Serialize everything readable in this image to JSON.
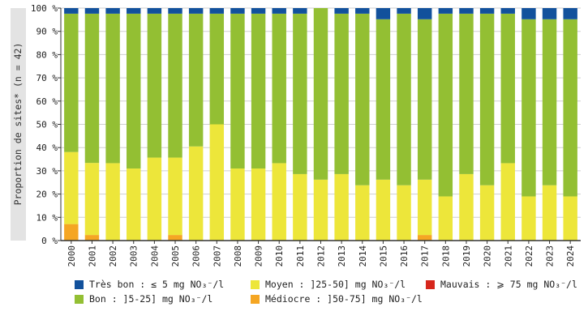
{
  "chart_data": {
    "type": "bar",
    "stacked": true,
    "ylabel": "Proportion de sites* (n = 42)",
    "ylim": [
      0,
      100
    ],
    "yticks": [
      "0 %",
      "10 %",
      "20 %",
      "30 %",
      "40 %",
      "50 %",
      "60 %",
      "70 %",
      "80 %",
      "90 %",
      "100 %"
    ],
    "grid": true,
    "legend_position": "bottom",
    "categories": [
      "2000",
      "2001",
      "2002",
      "2003",
      "2004",
      "2005",
      "2006",
      "2007",
      "2008",
      "2009",
      "2010",
      "2011",
      "2012",
      "2013",
      "2014",
      "2015",
      "2016",
      "2017",
      "2018",
      "2019",
      "2020",
      "2021",
      "2022",
      "2023",
      "2024"
    ],
    "series": [
      {
        "name": "Médiocre : ]50-75] mg NO₃⁻/l",
        "color": "#f5a623",
        "values": [
          7.1,
          2.4,
          0,
          0,
          0,
          2.4,
          0,
          0,
          0,
          0,
          0,
          0,
          0,
          0,
          0,
          0,
          0,
          2.4,
          0,
          0,
          0,
          0,
          0,
          0,
          0
        ]
      },
      {
        "name": "Moyen : ]25-50] mg NO₃⁻/l",
        "color": "#ede63a",
        "values": [
          31.0,
          31.0,
          33.3,
          31.0,
          35.7,
          33.3,
          40.5,
          50.0,
          31.0,
          31.0,
          33.3,
          28.6,
          26.2,
          28.6,
          23.8,
          26.2,
          23.8,
          23.8,
          19.0,
          28.6,
          23.8,
          33.3,
          19.0,
          23.8,
          19.0
        ]
      },
      {
        "name": "Bon : ]5-25] mg NO₃⁻/l",
        "color": "#93bf33",
        "values": [
          59.5,
          64.2,
          64.3,
          66.6,
          61.9,
          61.9,
          57.1,
          47.6,
          66.6,
          66.6,
          64.3,
          69.0,
          73.8,
          69.0,
          73.8,
          69.0,
          73.8,
          69.0,
          78.6,
          69.0,
          73.8,
          64.3,
          76.2,
          71.4,
          76.2
        ]
      },
      {
        "name": "Très bon : ≤ 5 mg NO₃⁻/l",
        "color": "#12519c",
        "values": [
          2.4,
          2.4,
          2.4,
          2.4,
          2.4,
          2.4,
          2.4,
          2.4,
          2.4,
          2.4,
          2.4,
          2.4,
          0,
          2.4,
          2.4,
          4.8,
          2.4,
          4.8,
          2.4,
          2.4,
          2.4,
          2.4,
          4.8,
          4.8,
          4.8
        ]
      },
      {
        "name": "Mauvais : ⩾ 75 mg NO₃⁻/l",
        "color": "#d6261c",
        "values": [
          0,
          0,
          0,
          0,
          0,
          0,
          0,
          0,
          0,
          0,
          0,
          0,
          0,
          0,
          0,
          0,
          0,
          0,
          0,
          0,
          0,
          0,
          0,
          0,
          0
        ]
      }
    ],
    "legend": [
      {
        "label": "Très bon : ≤ 5 mg NO₃⁻/l",
        "color": "#12519c"
      },
      {
        "label": "Moyen : ]25-50] mg NO₃⁻/l",
        "color": "#ede63a"
      },
      {
        "label": "Mauvais : ⩾ 75 mg NO₃⁻/l",
        "color": "#d6261c"
      },
      {
        "label": "Bon : ]5-25] mg NO₃⁻/l",
        "color": "#93bf33"
      },
      {
        "label": "Médiocre : ]50-75] mg NO₃⁻/l",
        "color": "#f5a623"
      }
    ]
  }
}
